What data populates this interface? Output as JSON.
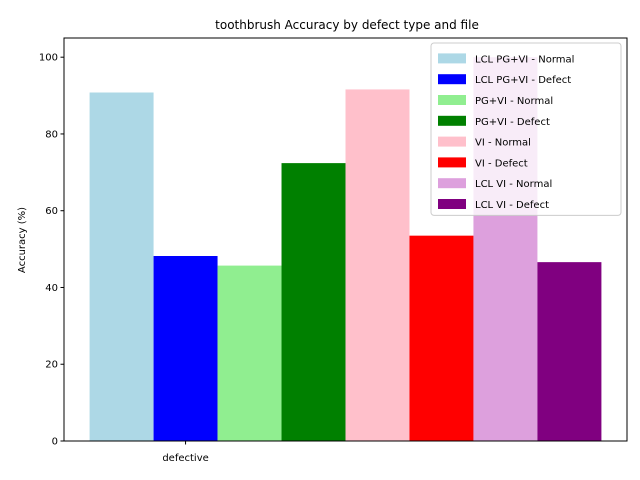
{
  "chart_data": {
    "type": "bar",
    "title": "toothbrush Accuracy by defect type and file",
    "xlabel": "",
    "ylabel": "Accuracy (%)",
    "categories": [
      "defective"
    ],
    "ylim": [
      0,
      105
    ],
    "yticks": [
      0,
      20,
      40,
      60,
      80,
      100
    ],
    "grid": false,
    "legend_position": "upper right",
    "series": [
      {
        "name": "LCL PG+VI - Normal",
        "color": "#add8e6",
        "values": [
          90.8
        ]
      },
      {
        "name": "LCL PG+VI - Defect",
        "color": "#0000ff",
        "values": [
          48.2
        ]
      },
      {
        "name": "PG+VI - Normal",
        "color": "#90ee90",
        "values": [
          45.7
        ]
      },
      {
        "name": "PG+VI - Defect",
        "color": "#008000",
        "values": [
          72.4
        ]
      },
      {
        "name": "VI - Normal",
        "color": "#ffc0cb",
        "values": [
          91.6
        ]
      },
      {
        "name": "VI - Defect",
        "color": "#ff0000",
        "values": [
          53.5
        ]
      },
      {
        "name": "LCL VI - Normal",
        "color": "#dda0dd",
        "values": [
          100.0
        ]
      },
      {
        "name": "LCL VI - Defect",
        "color": "#800080",
        "values": [
          46.6
        ]
      }
    ]
  }
}
